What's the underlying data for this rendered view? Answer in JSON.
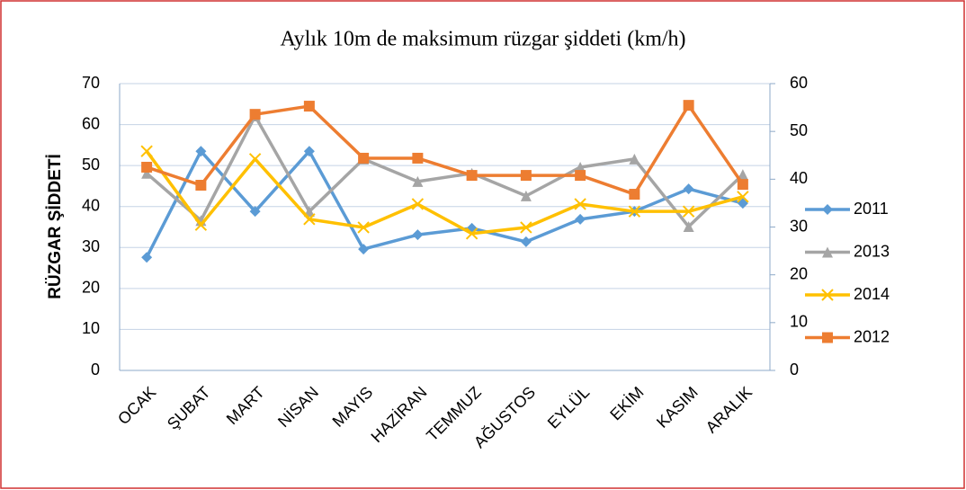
{
  "chart_data": {
    "type": "line",
    "title": "Aylık 10m de maksimum rüzgar şiddeti (km/h)",
    "y_label": "RÜZGAR ŞİDDETİ",
    "categories": [
      "OCAK",
      "ŞUBAT",
      "MART",
      "NİSAN",
      "MAYIS",
      "HAZİRAN",
      "TEMMUZ",
      "AĞUSTOS",
      "EYLÜL",
      "EKİM",
      "KASIM",
      "ARALIK"
    ],
    "series": [
      {
        "name": "2011",
        "color": "#5b9bd5",
        "marker": "diamond",
        "values": [
          27.6,
          53.5,
          38.8,
          53.5,
          29.6,
          33.1,
          34.7,
          31.4,
          36.9,
          38.8,
          44.3,
          40.8
        ]
      },
      {
        "name": "2013",
        "color": "#a5a5a5",
        "marker": "triangle",
        "values": [
          48.1,
          36.6,
          62.1,
          38.8,
          51.6,
          46.1,
          48.1,
          42.6,
          49.6,
          51.6,
          35.1,
          47.8
        ]
      },
      {
        "name": "2014",
        "color": "#ffc000",
        "marker": "x",
        "values": [
          53.5,
          35.5,
          51.6,
          36.9,
          34.9,
          40.6,
          33.4,
          34.9,
          40.6,
          38.8,
          38.8,
          42.4
        ]
      },
      {
        "name": "2012",
        "color": "#ed7d31",
        "marker": "square",
        "values": [
          49.6,
          45.2,
          62.5,
          64.5,
          51.8,
          51.8,
          47.6,
          47.6,
          47.6,
          43.0,
          64.7,
          45.4
        ]
      }
    ],
    "ylim": [
      0,
      70
    ],
    "yticks": [
      0,
      10,
      20,
      30,
      40,
      50,
      60,
      70
    ],
    "y2lim": [
      0,
      60
    ],
    "y2ticks": [
      0,
      10,
      20,
      30,
      40,
      50,
      60
    ],
    "grid": true,
    "legend": "right"
  }
}
